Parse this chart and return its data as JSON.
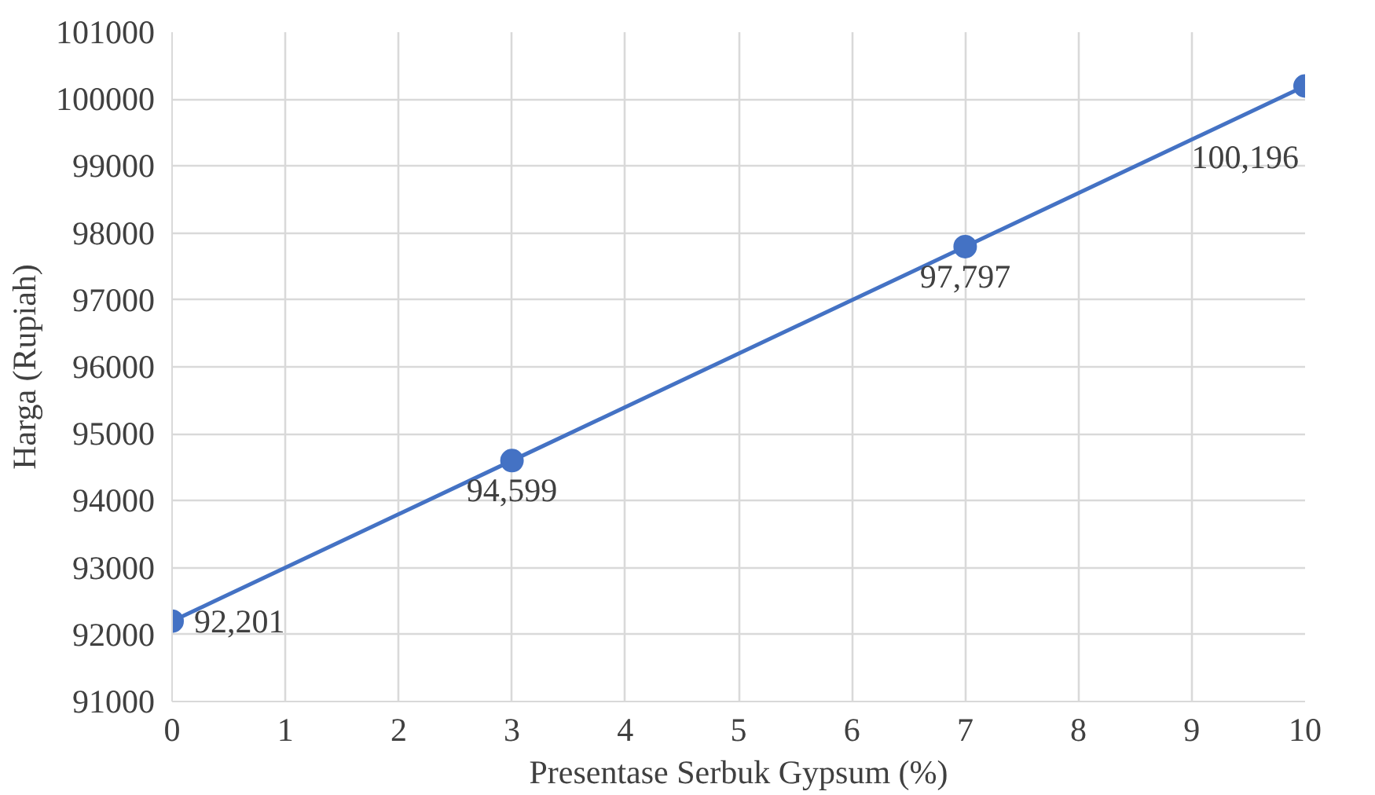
{
  "chart_data": {
    "type": "line",
    "xlabel": "Presentase Serbuk Gypsum (%)",
    "ylabel": "Harga (Rupiah)",
    "x": [
      0,
      3,
      7,
      10
    ],
    "series": [
      {
        "color": "#4472c4",
        "values": [
          92201,
          94599,
          97797,
          100196
        ],
        "value_labels": [
          "92,201",
          "94,599",
          "97,797",
          "100,196"
        ]
      }
    ],
    "xlim": [
      0,
      10
    ],
    "xticks": [
      0,
      1,
      2,
      3,
      4,
      5,
      6,
      7,
      8,
      9,
      10
    ],
    "ylim": [
      91000,
      101000
    ],
    "yticks": [
      91000,
      92000,
      93000,
      94000,
      95000,
      96000,
      97000,
      98000,
      99000,
      100000,
      101000
    ],
    "grid": true,
    "marker": "circle",
    "line_style": "solid"
  }
}
